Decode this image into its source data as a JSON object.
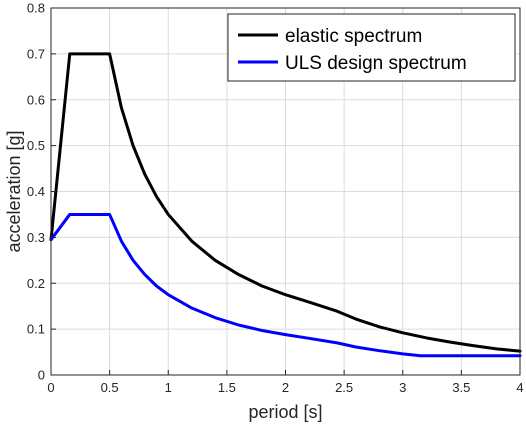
{
  "chart_data": {
    "type": "line",
    "xlabel": "period [s]",
    "ylabel": "acceleration [g]",
    "xlim": [
      0,
      4
    ],
    "ylim": [
      0,
      0.8
    ],
    "xticks": [
      0,
      0.5,
      1,
      1.5,
      2,
      2.5,
      3,
      3.5,
      4
    ],
    "xtick_labels": [
      "0",
      "0.5",
      "1",
      "1.5",
      "2",
      "2.5",
      "3",
      "3.5",
      "4"
    ],
    "yticks": [
      0,
      0.1,
      0.2,
      0.3,
      0.4,
      0.5,
      0.6,
      0.7,
      0.8
    ],
    "ytick_labels": [
      "0",
      "0.1",
      "0.2",
      "0.3",
      "0.4",
      "0.5",
      "0.6",
      "0.7",
      "0.8"
    ],
    "grid": true,
    "legend_position": "top-right",
    "series": [
      {
        "name": "elastic spectrum",
        "color": "#000000",
        "x": [
          0,
          0.16,
          0.5,
          0.6,
          0.7,
          0.8,
          0.9,
          1.0,
          1.2,
          1.4,
          1.6,
          1.8,
          2.0,
          2.2,
          2.44,
          2.6,
          2.8,
          3.0,
          3.2,
          3.4,
          3.6,
          3.8,
          4.0
        ],
        "y": [
          0.295,
          0.7,
          0.7,
          0.583,
          0.5,
          0.4375,
          0.389,
          0.35,
          0.292,
          0.25,
          0.219,
          0.194,
          0.175,
          0.159,
          0.139,
          0.122,
          0.105,
          0.092,
          0.081,
          0.072,
          0.064,
          0.057,
          0.052
        ]
      },
      {
        "name": "ULS design spectrum",
        "color": "#0000ff",
        "x": [
          0,
          0.16,
          0.5,
          0.6,
          0.7,
          0.8,
          0.9,
          1.0,
          1.2,
          1.4,
          1.6,
          1.8,
          2.0,
          2.2,
          2.44,
          2.6,
          2.8,
          3.0,
          3.15,
          3.5,
          4.0
        ],
        "y": [
          0.295,
          0.35,
          0.35,
          0.292,
          0.25,
          0.219,
          0.194,
          0.175,
          0.146,
          0.125,
          0.109,
          0.097,
          0.088,
          0.08,
          0.07,
          0.061,
          0.053,
          0.046,
          0.042,
          0.042,
          0.042
        ]
      }
    ]
  }
}
